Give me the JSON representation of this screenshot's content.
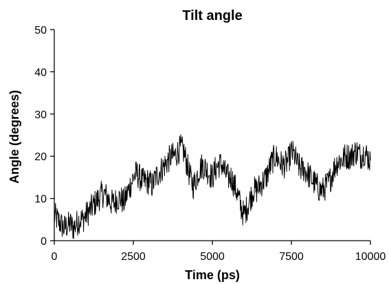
{
  "chart_data": {
    "type": "line",
    "title": "Tilt angle",
    "xlabel": "Time (ps)",
    "ylabel": "Angle (degrees)",
    "xlim": [
      0,
      10000
    ],
    "ylim": [
      0,
      50
    ],
    "xticks": [
      0,
      2500,
      5000,
      7500,
      10000
    ],
    "xtick_labels": [
      "0",
      "2500",
      "5000",
      "7500",
      "10000"
    ],
    "yticks": [
      0,
      10,
      20,
      30,
      40,
      50
    ],
    "ytick_labels": [
      "0",
      "10",
      "20",
      "30",
      "40",
      "50"
    ],
    "grid": false,
    "legend": "none",
    "line_color": "#000000",
    "series": [
      {
        "x": [
          0,
          100,
          200,
          300,
          400,
          500,
          600,
          700,
          800,
          900,
          1000,
          1100,
          1200,
          1300,
          1400,
          1500,
          1600,
          1700,
          1800,
          1900,
          2000,
          2100,
          2200,
          2300,
          2400,
          2500,
          2600,
          2700,
          2800,
          2900,
          3000,
          3100,
          3200,
          3300,
          3400,
          3500,
          3600,
          3700,
          3800,
          3900,
          4000,
          4100,
          4200,
          4300,
          4400,
          4500,
          4600,
          4700,
          4800,
          4900,
          5000,
          5100,
          5200,
          5300,
          5400,
          5500,
          5600,
          5700,
          5800,
          5900,
          6000,
          6100,
          6200,
          6300,
          6400,
          6500,
          6600,
          6700,
          6800,
          6900,
          7000,
          7100,
          7200,
          7300,
          7400,
          7500,
          7600,
          7700,
          7800,
          7900,
          8000,
          8100,
          8200,
          8300,
          8400,
          8500,
          8600,
          8700,
          8800,
          8900,
          9000,
          9100,
          9200,
          9300,
          9400,
          9500,
          9600,
          9700,
          9800,
          9900,
          10000
        ],
        "values": [
          6,
          5,
          4,
          3,
          3.5,
          4,
          3,
          4,
          5,
          5,
          6,
          7,
          8,
          9,
          10,
          11,
          11,
          10,
          9,
          9,
          10,
          10,
          9,
          11,
          13,
          15,
          16,
          15,
          14,
          14,
          14,
          13,
          15,
          16,
          17,
          18,
          19,
          20,
          20,
          21,
          22,
          21,
          18,
          15,
          13,
          15,
          17,
          18,
          17,
          16,
          15,
          17,
          18,
          18,
          16,
          15,
          15,
          13,
          11,
          8,
          6,
          8,
          10,
          12,
          12,
          13,
          14,
          15,
          17,
          19,
          20,
          19,
          18,
          18,
          19,
          21,
          20,
          18,
          17,
          17,
          16,
          15,
          14,
          13,
          12,
          12,
          13,
          14,
          16,
          18,
          19,
          19,
          20,
          20,
          20,
          21,
          21,
          20,
          21,
          20,
          19
        ]
      }
    ]
  }
}
